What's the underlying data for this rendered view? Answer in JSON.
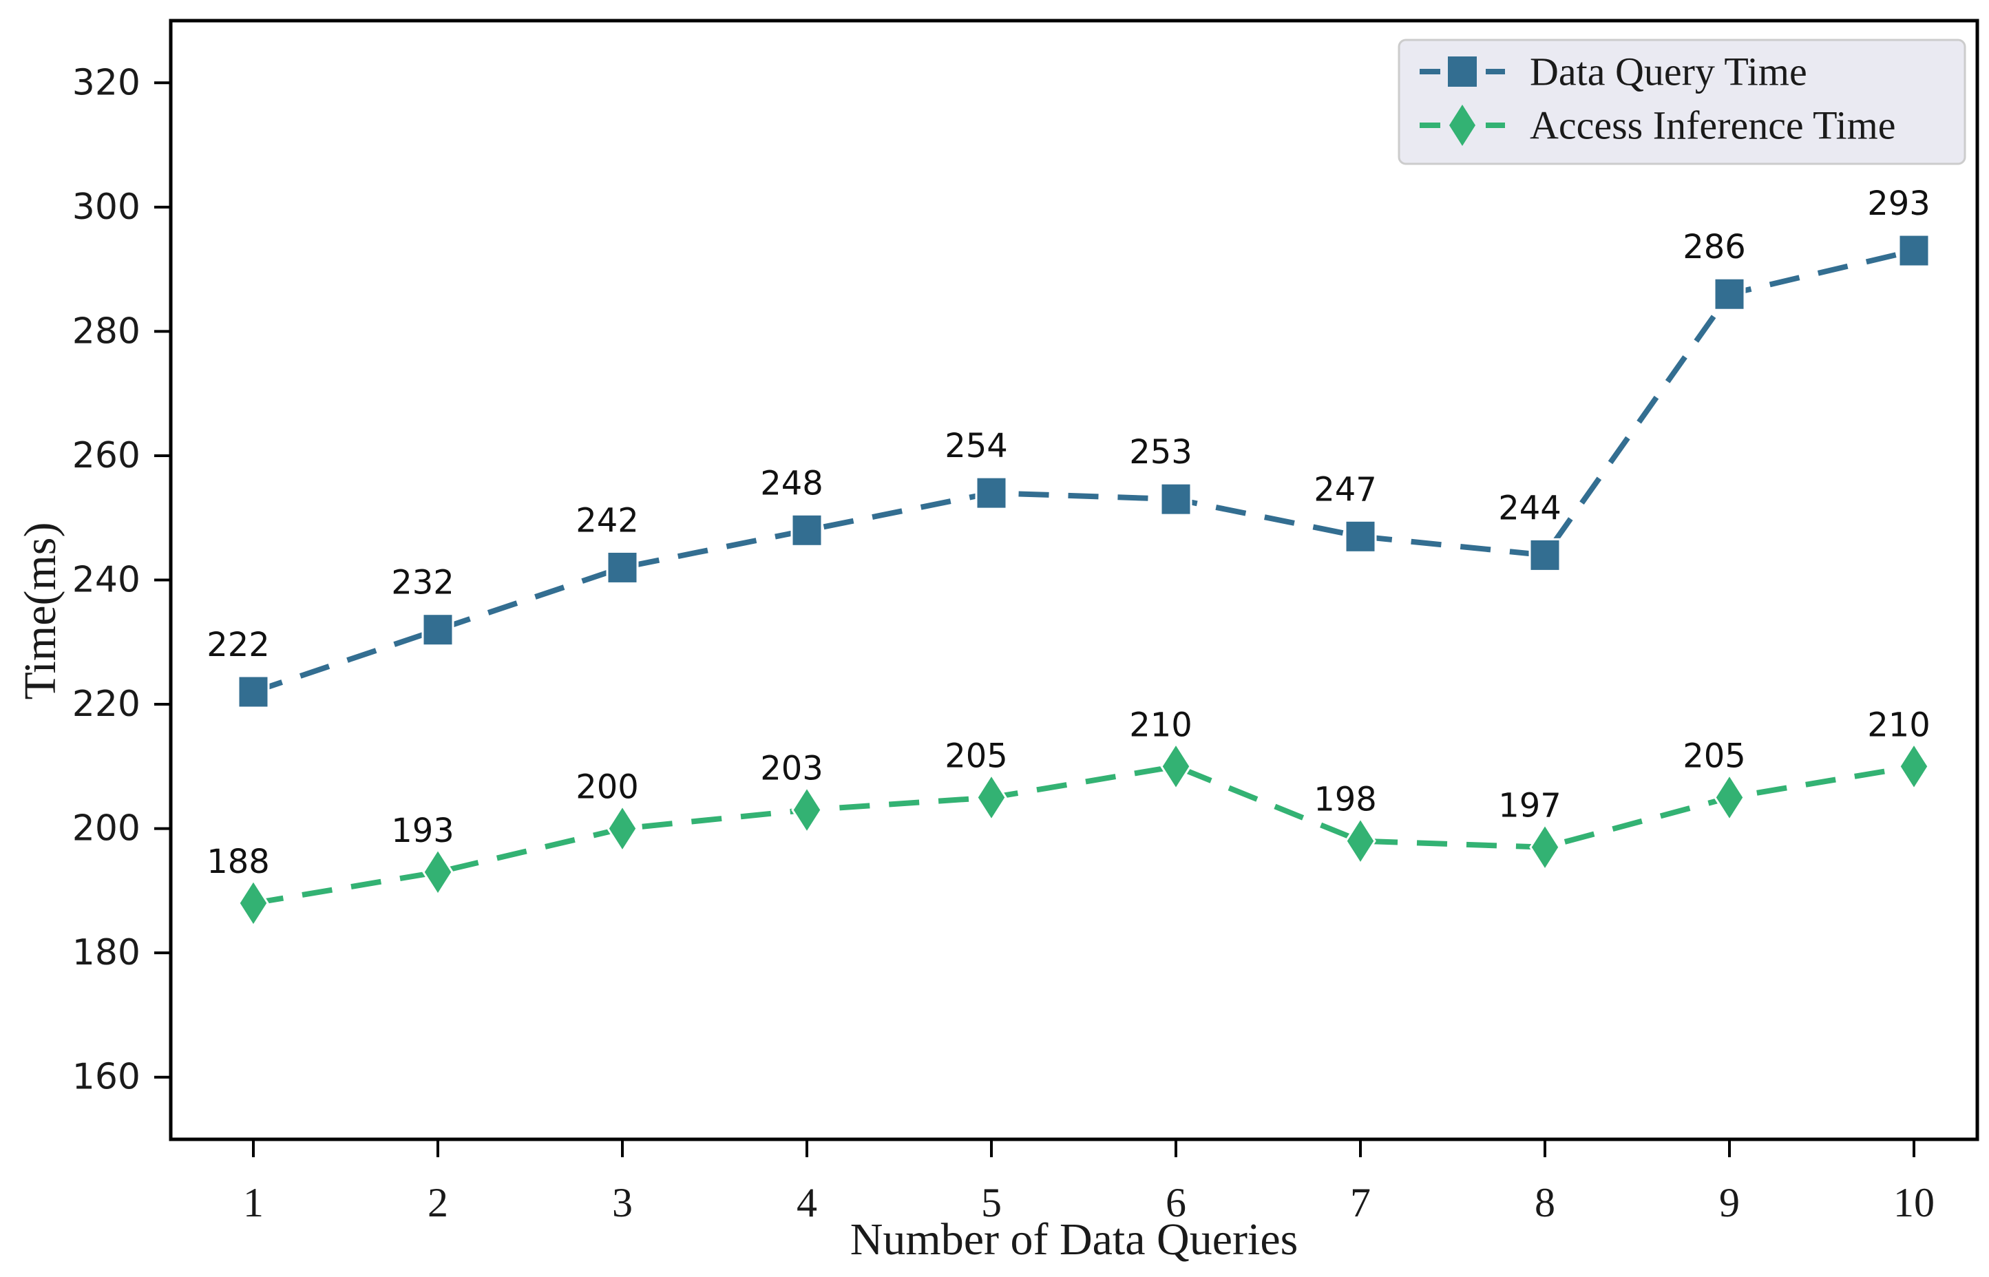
{
  "figure": {
    "background": "#ffffff",
    "axis_color": "#000000",
    "text_color": "#1a1a1a"
  },
  "chart_data": {
    "type": "line",
    "title": "",
    "xlabel": "Number of Data Queries",
    "ylabel": "Time(ms)",
    "categories": [
      1,
      2,
      3,
      4,
      5,
      6,
      7,
      8,
      9,
      10
    ],
    "series": [
      {
        "name": "Data Query Time",
        "marker": "square",
        "color": "#336e91",
        "linestyle": "dashed",
        "values": [
          222,
          232,
          242,
          248,
          254,
          253,
          247,
          244,
          286,
          293
        ],
        "point_labels": [
          "222",
          "232",
          "242",
          "248",
          "254",
          "253",
          "247",
          "244",
          "286",
          "293"
        ]
      },
      {
        "name": "Access Inference Time",
        "marker": "diamond",
        "color": "#33b273",
        "linestyle": "dashed",
        "values": [
          188,
          193,
          200,
          203,
          205,
          210,
          198,
          197,
          205,
          210
        ],
        "point_labels": [
          "188",
          "193",
          "200",
          "203",
          "205",
          "210",
          "198",
          "197",
          "205",
          "210"
        ]
      }
    ],
    "ylim": [
      150,
      330
    ],
    "yticks": [
      160,
      180,
      200,
      220,
      240,
      260,
      280,
      300,
      320
    ],
    "ytick_labels": [
      "160",
      "180",
      "200",
      "220",
      "240",
      "260",
      "280",
      "300",
      "320"
    ],
    "xtick_labels": [
      "1",
      "2",
      "3",
      "4",
      "5",
      "6",
      "7",
      "8",
      "9",
      "10"
    ],
    "grid": false,
    "legend_position": "upper right",
    "legend": {
      "background": "#eaeaf2",
      "border": "#cccccc",
      "entries": [
        "Data Query Time",
        "Access Inference Time"
      ]
    }
  }
}
